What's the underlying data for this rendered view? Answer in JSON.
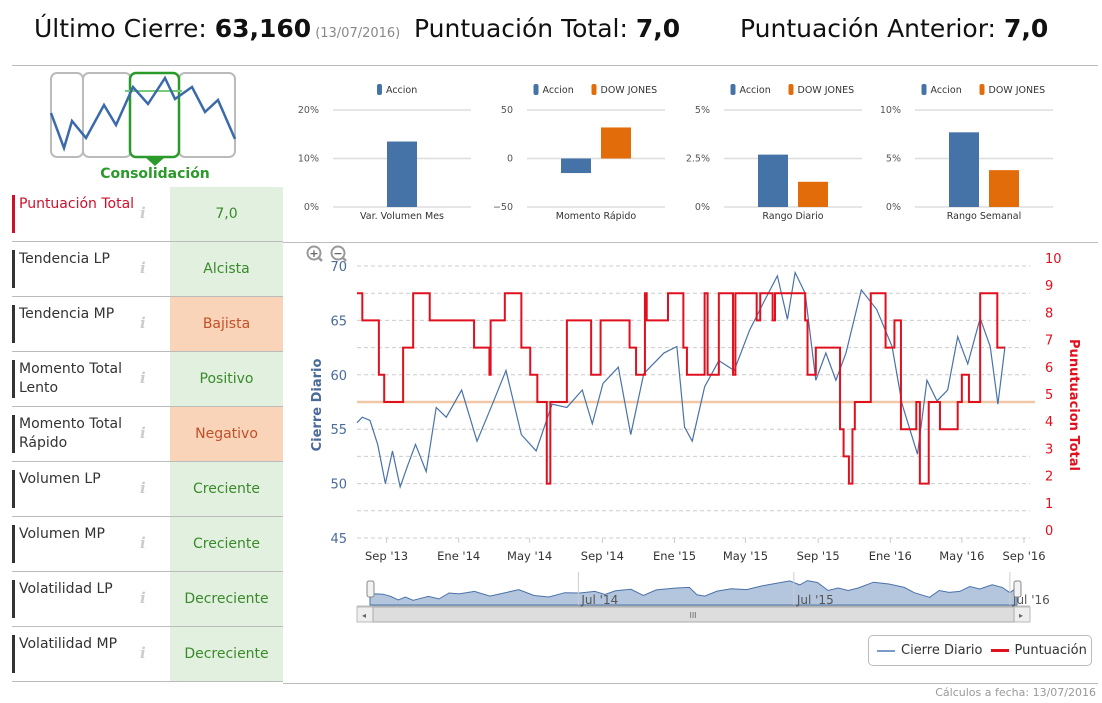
{
  "header": {
    "last_close_label": "Último Cierre:",
    "last_close_value": "63,160",
    "last_close_date": "(13/07/2016)",
    "total_score_label": "Puntuación Total:",
    "total_score_value": "7,0",
    "prev_score_label": "Puntuación Anterior:",
    "prev_score_value": "7,0"
  },
  "phase": {
    "label": "Consolidación",
    "color": "#2a9a2a"
  },
  "indicators": [
    {
      "label": "Puntuación Total",
      "value": "7,0",
      "status": "positive"
    },
    {
      "label": "Tendencia LP",
      "value": "Alcista",
      "status": "positive"
    },
    {
      "label": "Tendencia MP",
      "value": "Bajista",
      "status": "negative"
    },
    {
      "label": "Momento Total Lento",
      "value": "Positivo",
      "status": "positive"
    },
    {
      "label": "Momento Total Rápido",
      "value": "Negativo",
      "status": "negative"
    },
    {
      "label": "Volumen LP",
      "value": "Creciente",
      "status": "positive"
    },
    {
      "label": "Volumen MP",
      "value": "Creciente",
      "status": "positive"
    },
    {
      "label": "Volatilidad LP",
      "value": "Decreciente",
      "status": "positive"
    },
    {
      "label": "Volatilidad MP",
      "value": "Decreciente",
      "status": "positive"
    }
  ],
  "info_icon": "i",
  "colors": {
    "accion": "#4572a7",
    "dow": "#e36c0a",
    "score": "#e0101e",
    "threshold": "#f0c8a8"
  },
  "chart_data": [
    {
      "type": "bar",
      "categories": [
        "Var. Volumen Mes"
      ],
      "series": [
        {
          "name": "Accion",
          "values": [
            13.5
          ]
        }
      ],
      "yticks": [
        "0%",
        "10%",
        "20%"
      ],
      "ylim": [
        0,
        20
      ],
      "grid": true,
      "legend": "top"
    },
    {
      "type": "bar",
      "categories": [
        "Momento Rápido"
      ],
      "series": [
        {
          "name": "Accion",
          "values": [
            -15
          ]
        },
        {
          "name": "DOW JONES",
          "values": [
            32
          ]
        }
      ],
      "yticks": [
        "−50",
        "0",
        "50"
      ],
      "ylim": [
        -50,
        50
      ],
      "grid": true,
      "legend": "top"
    },
    {
      "type": "bar",
      "categories": [
        "Rango Diario"
      ],
      "series": [
        {
          "name": "Accion",
          "values": [
            2.7
          ]
        },
        {
          "name": "DOW JONES",
          "values": [
            1.3
          ]
        }
      ],
      "yticks": [
        "0%",
        "2.5%",
        "5%"
      ],
      "ylim": [
        0,
        5
      ],
      "grid": true,
      "legend": "top"
    },
    {
      "type": "bar",
      "categories": [
        "Rango Semanal"
      ],
      "series": [
        {
          "name": "Accion",
          "values": [
            7.7
          ]
        },
        {
          "name": "DOW JONES",
          "values": [
            3.8
          ]
        }
      ],
      "yticks": [
        "0%",
        "5%",
        "10%"
      ],
      "ylim": [
        0,
        10
      ],
      "grid": true,
      "legend": "top"
    },
    {
      "type": "line",
      "xlim": [
        "2013-07-13",
        "2016-07-13"
      ],
      "xticks": [
        [
          "2013-09-01",
          "Sep '13"
        ],
        [
          "2014-01-01",
          "Ene '14"
        ],
        [
          "2014-05-01",
          "May '14"
        ],
        [
          "2014-09-01",
          "Sep '14"
        ],
        [
          "2015-01-01",
          "Ene '15"
        ],
        [
          "2015-05-01",
          "May '15"
        ],
        [
          "2015-09-01",
          "Sep '15"
        ],
        [
          "2016-01-01",
          "Ene '16"
        ],
        [
          "2016-05-01",
          "May '16"
        ],
        [
          "2016-09-01",
          "Sep '16"
        ]
      ],
      "ylabel": "Cierre Diario",
      "ylim": [
        45,
        70
      ],
      "yticks": [
        "45",
        "50",
        "55",
        "60",
        "65",
        "70"
      ],
      "y2label": "Punutuacion Total",
      "y2lim": [
        0,
        10
      ],
      "y2ticks": [
        "0",
        "1",
        "2",
        "3",
        "4",
        "5",
        "6",
        "7",
        "8",
        "9",
        "10"
      ],
      "grid": true,
      "threshold": 57.5,
      "legend": "bottom-right",
      "series": [
        {
          "name": "Cierre Diario",
          "axis": "left",
          "points": [
            [
              "2013-07-13",
              55.6
            ],
            [
              "2013-07-22",
              56.1
            ],
            [
              "2013-08-04",
              55.8
            ],
            [
              "2013-08-17",
              53.6
            ],
            [
              "2013-08-30",
              50.0
            ],
            [
              "2013-09-11",
              53.0
            ],
            [
              "2013-09-24",
              49.7
            ],
            [
              "2013-10-07",
              51.7
            ],
            [
              "2013-10-20",
              53.6
            ],
            [
              "2013-11-07",
              51.1
            ],
            [
              "2013-11-24",
              57.0
            ],
            [
              "2013-12-11",
              56.1
            ],
            [
              "2014-01-06",
              58.6
            ],
            [
              "2014-02-01",
              53.9
            ],
            [
              "2014-02-27",
              57.3
            ],
            [
              "2014-03-22",
              60.4
            ],
            [
              "2014-04-17",
              54.5
            ],
            [
              "2014-05-12",
              53.0
            ],
            [
              "2014-06-08",
              57.3
            ],
            [
              "2014-07-03",
              57.0
            ],
            [
              "2014-07-29",
              58.6
            ],
            [
              "2014-08-15",
              55.5
            ],
            [
              "2014-09-02",
              59.2
            ],
            [
              "2014-09-28",
              60.7
            ],
            [
              "2014-10-19",
              54.5
            ],
            [
              "2014-11-10",
              60.1
            ],
            [
              "2014-12-14",
              62.0
            ],
            [
              "2015-01-05",
              62.6
            ],
            [
              "2015-01-18",
              55.2
            ],
            [
              "2015-01-31",
              53.9
            ],
            [
              "2015-02-21",
              58.9
            ],
            [
              "2015-03-17",
              61.3
            ],
            [
              "2015-04-12",
              60.4
            ],
            [
              "2015-05-08",
              64.1
            ],
            [
              "2015-06-03",
              66.9
            ],
            [
              "2015-06-24",
              69.1
            ],
            [
              "2015-07-11",
              65.1
            ],
            [
              "2015-07-24",
              69.4
            ],
            [
              "2015-08-10",
              67.5
            ],
            [
              "2015-08-28",
              59.5
            ],
            [
              "2015-09-14",
              62.0
            ],
            [
              "2015-10-01",
              59.5
            ],
            [
              "2015-10-18",
              62.0
            ],
            [
              "2015-11-13",
              67.8
            ],
            [
              "2015-12-09",
              66.0
            ],
            [
              "2016-01-04",
              62.6
            ],
            [
              "2016-01-21",
              57.3
            ],
            [
              "2016-02-16",
              52.7
            ],
            [
              "2016-03-03",
              59.5
            ],
            [
              "2016-03-20",
              57.6
            ],
            [
              "2016-04-07",
              58.6
            ],
            [
              "2016-04-24",
              63.5
            ],
            [
              "2016-05-11",
              61.0
            ],
            [
              "2016-06-01",
              65.2
            ],
            [
              "2016-06-18",
              62.6
            ],
            [
              "2016-07-01",
              57.3
            ],
            [
              "2016-07-13",
              62.6
            ]
          ]
        },
        {
          "name": "Puntuación",
          "axis": "right",
          "step": true,
          "points": [
            [
              "2013-07-13",
              9
            ],
            [
              "2013-07-22",
              8
            ],
            [
              "2013-08-19",
              6
            ],
            [
              "2013-08-28",
              5
            ],
            [
              "2013-09-29",
              7
            ],
            [
              "2013-10-16",
              9
            ],
            [
              "2013-11-13",
              8
            ],
            [
              "2014-01-27",
              7
            ],
            [
              "2014-02-22",
              6
            ],
            [
              "2014-02-24",
              8
            ],
            [
              "2014-03-20",
              9
            ],
            [
              "2014-04-17",
              7
            ],
            [
              "2014-05-02",
              6
            ],
            [
              "2014-05-14",
              5
            ],
            [
              "2014-05-30",
              2
            ],
            [
              "2014-06-05",
              5
            ],
            [
              "2014-07-03",
              8
            ],
            [
              "2014-08-13",
              6
            ],
            [
              "2014-08-29",
              8
            ],
            [
              "2014-10-17",
              7
            ],
            [
              "2014-10-28",
              6
            ],
            [
              "2014-11-12",
              9
            ],
            [
              "2014-11-15",
              8
            ],
            [
              "2014-12-21",
              9
            ],
            [
              "2015-01-16",
              7
            ],
            [
              "2015-01-22",
              6
            ],
            [
              "2015-02-21",
              9
            ],
            [
              "2015-02-26",
              6
            ],
            [
              "2015-03-17",
              9
            ],
            [
              "2015-04-10",
              6
            ],
            [
              "2015-04-14",
              9
            ],
            [
              "2015-05-20",
              8
            ],
            [
              "2015-05-26",
              9
            ],
            [
              "2015-06-16",
              8
            ],
            [
              "2015-06-20",
              9
            ],
            [
              "2015-08-10",
              8
            ],
            [
              "2015-08-14",
              6
            ],
            [
              "2015-08-28",
              7
            ],
            [
              "2015-10-08",
              4
            ],
            [
              "2015-10-14",
              3
            ],
            [
              "2015-10-23",
              2
            ],
            [
              "2015-10-29",
              4
            ],
            [
              "2015-11-02",
              5
            ],
            [
              "2015-11-29",
              9
            ],
            [
              "2015-12-24",
              7
            ],
            [
              "2016-01-08",
              8
            ],
            [
              "2016-01-19",
              4
            ],
            [
              "2016-02-14",
              5
            ],
            [
              "2016-02-20",
              2
            ],
            [
              "2016-03-06",
              5
            ],
            [
              "2016-03-25",
              4
            ],
            [
              "2016-04-24",
              5
            ],
            [
              "2016-05-01",
              6
            ],
            [
              "2016-05-13",
              5
            ],
            [
              "2016-06-01",
              9
            ],
            [
              "2016-06-30",
              7
            ],
            [
              "2016-07-13",
              7
            ]
          ]
        }
      ],
      "navigator": {
        "labels": [
          [
            "2014-07-01",
            "Jul '14"
          ],
          [
            "2015-07-01",
            "Jul '15"
          ],
          [
            "2016-07-01",
            "Jul '16"
          ]
        ]
      }
    }
  ],
  "legend": {
    "close": "Cierre Diario",
    "score": "Puntuación"
  },
  "footer": "Cálculos a fecha: 13/07/2016"
}
